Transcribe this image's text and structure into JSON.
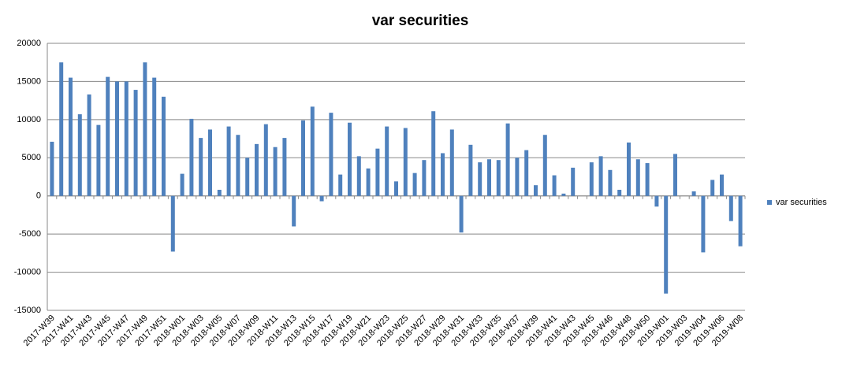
{
  "chart_data": {
    "type": "bar",
    "title": "var securities",
    "categories": [
      "2017-W39",
      null,
      "2017-W41",
      null,
      "2017-W43",
      null,
      "2017-W45",
      null,
      "2017-W47",
      null,
      "2017-W49",
      null,
      "2017-W51",
      null,
      "2018-W01",
      null,
      "2018-W03",
      null,
      "2018-W05",
      null,
      "2018-W07",
      null,
      "2018-W09",
      null,
      "2018-W11",
      null,
      "2018-W13",
      null,
      "2018-W15",
      null,
      "2018-W17",
      null,
      "2018-W19",
      null,
      "2018-W21",
      null,
      "2018-W23",
      null,
      "2018-W25",
      null,
      "2018-W27",
      null,
      "2018-W29",
      null,
      "2018-W31",
      null,
      "2018-W33",
      null,
      "2018-W35",
      null,
      "2018-W37",
      null,
      "2018-W39",
      null,
      "2018-W41",
      null,
      "2018-W43",
      null,
      "2018-W45",
      null,
      "2018-W46",
      null,
      "2018-W48",
      null,
      "2018-W50",
      null,
      "2019-W01",
      null,
      "2019-W03",
      null,
      "2019-W04",
      null,
      "2019-W06",
      null,
      "2019-W08"
    ],
    "series": [
      {
        "name": "var securities",
        "color": "#4f81bd",
        "values": [
          7100,
          17500,
          15500,
          10700,
          13300,
          9300,
          15600,
          15000,
          15000,
          13900,
          17500,
          15500,
          13000,
          -7300,
          2900,
          10100,
          7600,
          8700,
          800,
          9100,
          8000,
          5000,
          6800,
          9400,
          6400,
          7600,
          -4000,
          9900,
          11700,
          -700,
          10900,
          2800,
          9600,
          5200,
          3600,
          6200,
          9100,
          1900,
          8900,
          3000,
          4700,
          11100,
          5600,
          8700,
          -4800,
          6700,
          4400,
          4800,
          4700,
          9500,
          5000,
          6000,
          1400,
          8000,
          2700,
          300,
          3700,
          0,
          4400,
          5200,
          3400,
          800,
          7000,
          4800,
          4300,
          -1400,
          -12800,
          5500,
          0,
          600,
          -7400,
          2100,
          2800,
          -3300,
          -6600
        ]
      }
    ],
    "ylim": [
      -15000,
      20000
    ],
    "yticks": [
      -15000,
      -10000,
      -5000,
      0,
      5000,
      10000,
      15000,
      20000
    ],
    "grid": true,
    "legend": "right"
  }
}
